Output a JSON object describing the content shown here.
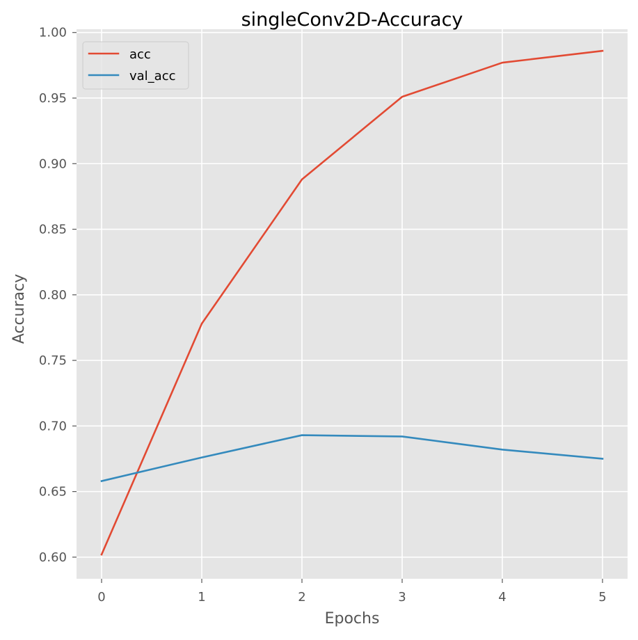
{
  "chart_data": {
    "type": "line",
    "title": "singleConv2D-Accuracy",
    "xlabel": "Epochs",
    "ylabel": "Accuracy",
    "x": [
      0,
      1,
      2,
      3,
      4,
      5
    ],
    "xlim": [
      -0.25,
      5.25
    ],
    "ylim": [
      0.5835,
      1.0025
    ],
    "xticks": [
      0,
      1,
      2,
      3,
      4,
      5
    ],
    "xtick_labels": [
      "0",
      "1",
      "2",
      "3",
      "4",
      "5"
    ],
    "yticks": [
      0.6,
      0.65,
      0.7,
      0.75,
      0.8,
      0.85,
      0.9,
      0.95,
      1.0
    ],
    "ytick_labels": [
      "0.60",
      "0.65",
      "0.70",
      "0.75",
      "0.80",
      "0.85",
      "0.90",
      "0.95",
      "1.00"
    ],
    "grid": true,
    "legend_position": "top-left",
    "series": [
      {
        "name": "acc",
        "color": "#E24A33",
        "values": [
          0.602,
          0.778,
          0.888,
          0.951,
          0.977,
          0.986
        ]
      },
      {
        "name": "val_acc",
        "color": "#348ABD",
        "values": [
          0.658,
          0.676,
          0.693,
          0.692,
          0.682,
          0.675
        ]
      }
    ]
  }
}
